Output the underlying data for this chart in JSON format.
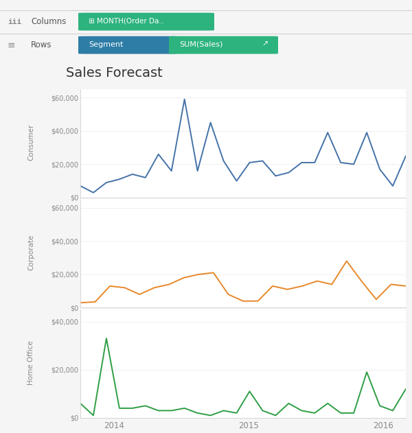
{
  "title": "Sales Forecast",
  "bg_color": "#f5f5f5",
  "plot_bg": "#ffffff",
  "segments": [
    "Consumer",
    "Corporate",
    "Home Office"
  ],
  "segment_colors": [
    "#4472a8",
    "#e8882a",
    "#2e9e44"
  ],
  "consumer_data": [
    7000,
    3000,
    9000,
    11000,
    14000,
    12000,
    26000,
    16000,
    59000,
    16000,
    45000,
    22000,
    10000,
    21000,
    22000,
    13000,
    15000,
    21000,
    21000,
    39000,
    21000,
    20000,
    39000,
    17000,
    7000,
    25000
  ],
  "corporate_data": [
    3000,
    3500,
    13000,
    12000,
    8000,
    12000,
    14000,
    18000,
    20000,
    21000,
    8000,
    4000,
    4000,
    13000,
    11000,
    13000,
    16000,
    14000,
    28000,
    16000,
    5000,
    14000,
    13000
  ],
  "homeoffice_data": [
    6000,
    1000,
    33000,
    4000,
    4000,
    5000,
    3000,
    3000,
    4000,
    2000,
    1000,
    3000,
    2000,
    11000,
    3000,
    1000,
    6000,
    3000,
    2000,
    6000,
    2000,
    2000,
    19000,
    5000,
    3000,
    12000
  ],
  "consumer_ylim": [
    0,
    65000
  ],
  "corporate_ylim": [
    0,
    65000
  ],
  "homeoffice_ylim": [
    0,
    45000
  ],
  "consumer_yticks": [
    0,
    20000,
    40000,
    60000
  ],
  "corporate_yticks": [
    0,
    20000,
    40000,
    60000
  ],
  "homeoffice_yticks": [
    0,
    20000,
    40000
  ],
  "header1_icon": "iii",
  "header1_label": "Columns",
  "header1_pill_text": "⊞ MONTH(Order Da..",
  "header1_pill_color": "#2db37e",
  "header2_icon": "≡",
  "header2_label": "Rows",
  "header2_pill1_text": "Segment",
  "header2_pill1_color": "#2e7da6",
  "header2_pill2_text": "SUM(Sales)",
  "header2_pill2_color": "#2db37e",
  "header2_arrow": "↗",
  "text_color": "#555555",
  "icon_color": "#888888",
  "title_color": "#333333",
  "spine_color": "#d0d0d0",
  "grid_color": "#eeeeee",
  "separator_color": "#cccccc",
  "tick_label_color": "#888888",
  "seg_label_color": "#888888",
  "x_tick_positions": [
    3,
    15,
    27
  ],
  "x_tick_labels": [
    "2014",
    "2015",
    "2016"
  ],
  "n_months": 30
}
